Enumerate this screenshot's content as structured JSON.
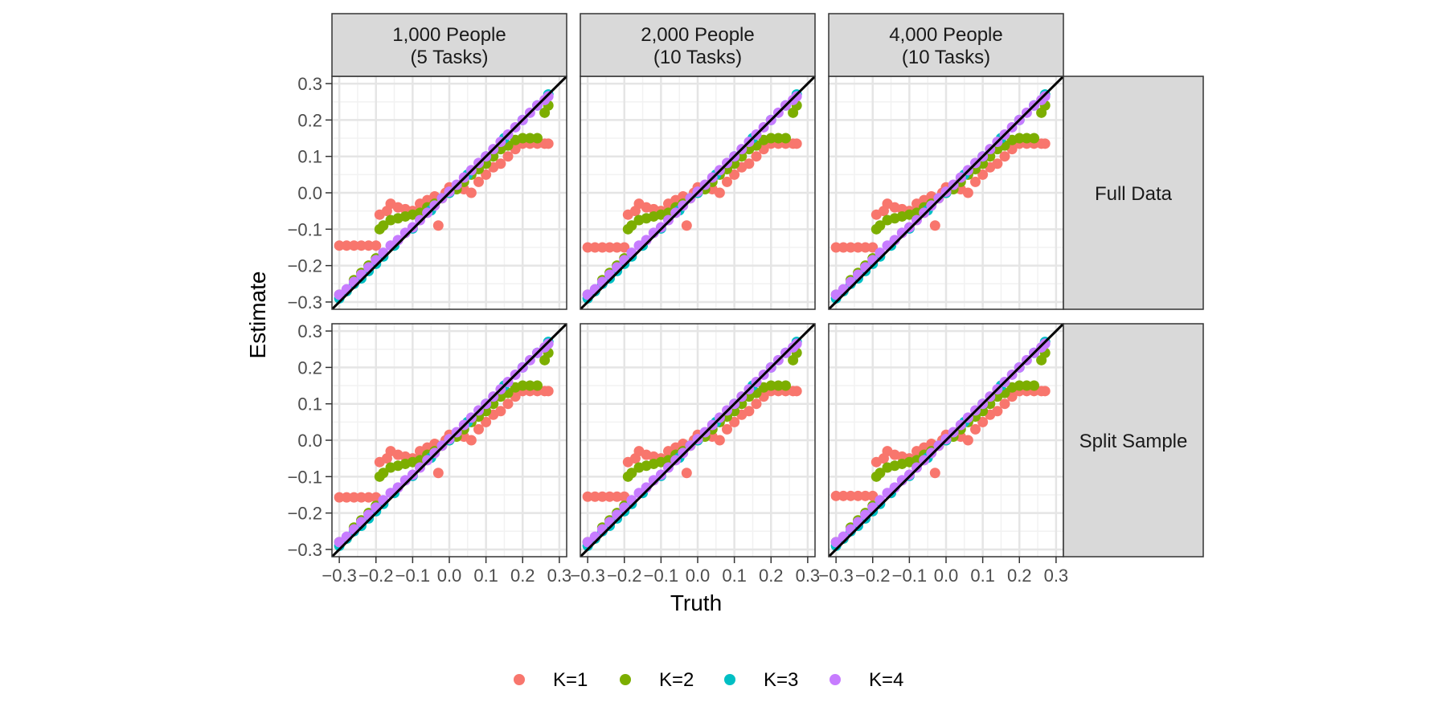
{
  "chart_data": {
    "type": "scatter",
    "title": "",
    "xlabel": "Truth",
    "ylabel": "Estimate",
    "xlim": [
      -0.32,
      0.32
    ],
    "ylim": [
      -0.32,
      0.32
    ],
    "x_ticks": [
      "-0.3",
      "-0.2",
      "-0.1",
      "0.0",
      "0.1",
      "0.2",
      "0.3"
    ],
    "y_ticks": [
      "-0.3",
      "-0.2",
      "-0.1",
      "0.0",
      "0.1",
      "0.2",
      "0.3"
    ],
    "grid": true,
    "reference_line": "y = x",
    "legend_position": "bottom",
    "columns": [
      "1,000 People\n(5 Tasks)",
      "2,000 People\n(10 Tasks)",
      "4,000 People\n(10 Tasks)"
    ],
    "rows": [
      "Full Data",
      "Split Sample"
    ],
    "legend": [
      {
        "name": "K=1",
        "color": "#F8766D"
      },
      {
        "name": "K=2",
        "color": "#7CAE00"
      },
      {
        "name": "K=3",
        "color": "#00BFC4"
      },
      {
        "name": "K=4",
        "color": "#C77CFF"
      }
    ],
    "series_points": {
      "K=1": [
        [
          -0.3,
          -0.145
        ],
        [
          -0.28,
          -0.145
        ],
        [
          -0.26,
          -0.145
        ],
        [
          -0.24,
          -0.145
        ],
        [
          -0.22,
          -0.145
        ],
        [
          -0.2,
          -0.145
        ],
        [
          -0.19,
          -0.06
        ],
        [
          -0.17,
          -0.05
        ],
        [
          -0.16,
          -0.03
        ],
        [
          -0.14,
          -0.04
        ],
        [
          -0.12,
          -0.045
        ],
        [
          -0.1,
          -0.05
        ],
        [
          -0.08,
          -0.03
        ],
        [
          -0.06,
          -0.02
        ],
        [
          -0.04,
          -0.01
        ],
        [
          -0.03,
          -0.09
        ],
        [
          -0.01,
          0.0
        ],
        [
          0.0,
          0.015
        ],
        [
          0.02,
          0.02
        ],
        [
          0.04,
          0.01
        ],
        [
          0.06,
          0.0
        ],
        [
          0.08,
          0.03
        ],
        [
          0.1,
          0.05
        ],
        [
          0.12,
          0.07
        ],
        [
          0.14,
          0.08
        ],
        [
          0.16,
          0.1
        ],
        [
          0.18,
          0.12
        ],
        [
          0.2,
          0.135
        ],
        [
          0.22,
          0.135
        ],
        [
          0.24,
          0.135
        ],
        [
          0.26,
          0.135
        ],
        [
          0.27,
          0.135
        ]
      ],
      "K=2": [
        [
          -0.3,
          -0.28
        ],
        [
          -0.28,
          -0.27
        ],
        [
          -0.26,
          -0.24
        ],
        [
          -0.24,
          -0.22
        ],
        [
          -0.22,
          -0.2
        ],
        [
          -0.2,
          -0.18
        ],
        [
          -0.19,
          -0.1
        ],
        [
          -0.18,
          -0.09
        ],
        [
          -0.16,
          -0.075
        ],
        [
          -0.14,
          -0.07
        ],
        [
          -0.12,
          -0.065
        ],
        [
          -0.1,
          -0.06
        ],
        [
          -0.08,
          -0.055
        ],
        [
          -0.06,
          -0.04
        ],
        [
          -0.04,
          -0.03
        ],
        [
          -0.02,
          -0.015
        ],
        [
          0.0,
          0.0
        ],
        [
          0.02,
          0.01
        ],
        [
          0.04,
          0.03
        ],
        [
          0.06,
          0.05
        ],
        [
          0.08,
          0.065
        ],
        [
          0.1,
          0.08
        ],
        [
          0.12,
          0.1
        ],
        [
          0.14,
          0.12
        ],
        [
          0.16,
          0.13
        ],
        [
          0.18,
          0.145
        ],
        [
          0.2,
          0.15
        ],
        [
          0.22,
          0.15
        ],
        [
          0.24,
          0.15
        ],
        [
          0.26,
          0.22
        ],
        [
          0.27,
          0.24
        ]
      ],
      "K=3": [
        [
          -0.3,
          -0.29
        ],
        [
          -0.28,
          -0.27
        ],
        [
          -0.26,
          -0.25
        ],
        [
          -0.24,
          -0.235
        ],
        [
          -0.22,
          -0.215
        ],
        [
          -0.2,
          -0.195
        ],
        [
          -0.18,
          -0.175
        ],
        [
          -0.15,
          -0.145
        ],
        [
          -0.1,
          -0.098
        ],
        [
          -0.05,
          -0.048
        ],
        [
          0.0,
          0.0
        ],
        [
          0.05,
          0.05
        ],
        [
          0.1,
          0.1
        ],
        [
          0.15,
          0.15
        ],
        [
          0.2,
          0.2
        ],
        [
          0.24,
          0.24
        ],
        [
          0.27,
          0.27
        ]
      ],
      "K=4": [
        [
          -0.3,
          -0.28
        ],
        [
          -0.28,
          -0.265
        ],
        [
          -0.26,
          -0.245
        ],
        [
          -0.24,
          -0.225
        ],
        [
          -0.22,
          -0.205
        ],
        [
          -0.2,
          -0.185
        ],
        [
          -0.18,
          -0.165
        ],
        [
          -0.16,
          -0.145
        ],
        [
          -0.14,
          -0.13
        ],
        [
          -0.12,
          -0.11
        ],
        [
          -0.1,
          -0.095
        ],
        [
          -0.08,
          -0.075
        ],
        [
          -0.06,
          -0.055
        ],
        [
          -0.04,
          -0.035
        ],
        [
          -0.02,
          -0.015
        ],
        [
          0.0,
          0.003
        ],
        [
          0.02,
          0.022
        ],
        [
          0.04,
          0.042
        ],
        [
          0.06,
          0.062
        ],
        [
          0.08,
          0.082
        ],
        [
          0.1,
          0.1
        ],
        [
          0.12,
          0.12
        ],
        [
          0.14,
          0.14
        ],
        [
          0.16,
          0.16
        ],
        [
          0.18,
          0.18
        ],
        [
          0.2,
          0.2
        ],
        [
          0.22,
          0.22
        ],
        [
          0.24,
          0.24
        ],
        [
          0.26,
          0.255
        ],
        [
          0.27,
          0.265
        ]
      ]
    }
  }
}
